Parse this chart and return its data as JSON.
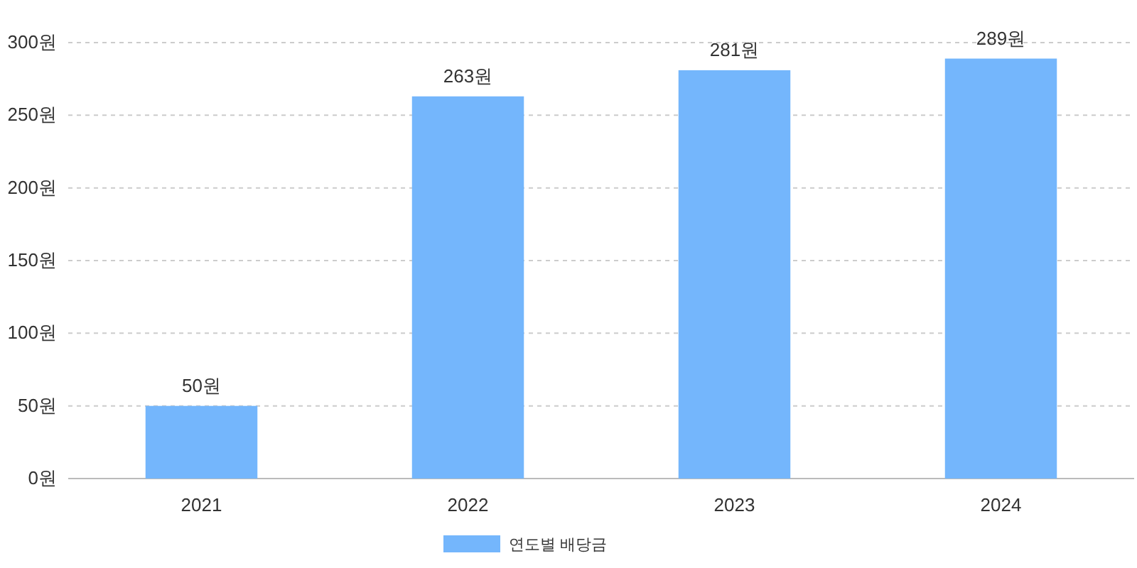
{
  "chart_data": {
    "type": "bar",
    "categories": [
      "2021",
      "2022",
      "2023",
      "2024"
    ],
    "series": [
      {
        "name": "연도별 배당금",
        "color": "#74b6fc",
        "values": [
          50,
          263,
          281,
          289
        ],
        "value_labels": [
          "50원",
          "263원",
          "281원",
          "289원"
        ]
      }
    ],
    "ylim": [
      0,
      300
    ],
    "yticks": [
      {
        "value": 0,
        "label": "0원"
      },
      {
        "value": 50,
        "label": "50원"
      },
      {
        "value": 100,
        "label": "100원"
      },
      {
        "value": 150,
        "label": "150원"
      },
      {
        "value": 200,
        "label": "200원"
      },
      {
        "value": 250,
        "label": "250원"
      },
      {
        "value": 300,
        "label": "300원"
      }
    ],
    "grid": "y",
    "legend": "bottom"
  }
}
